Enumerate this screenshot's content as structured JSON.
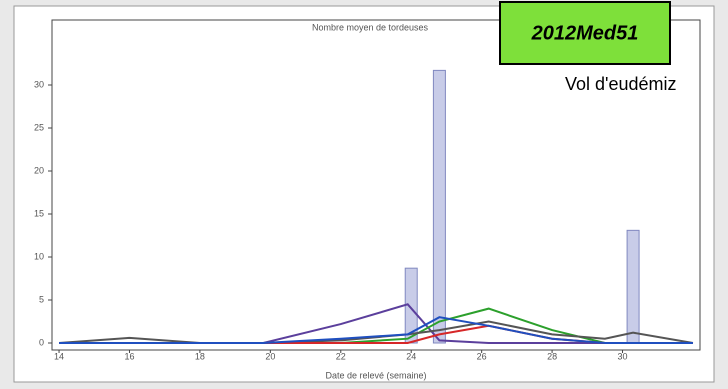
{
  "chart_data": {
    "type": "line",
    "title": "Nombre moyen de tordeuses",
    "x_label": "Date de relevé (semaine)",
    "annotations": [
      "2012Med51",
      "Vol d'eudémiz"
    ],
    "x": [
      14,
      16,
      18,
      19.8,
      22,
      23.9,
      24.8,
      26.2,
      28,
      29.5,
      30.3,
      32
    ],
    "series": [
      {
        "color": "#5b3f9c",
        "values": [
          0,
          0,
          0,
          0,
          2.2,
          4.5,
          0.3,
          0,
          0,
          0,
          0,
          0
        ]
      },
      {
        "color": "#2ca02c",
        "values": [
          0,
          0,
          0,
          0,
          0,
          0.5,
          2.5,
          4,
          1.5,
          0,
          0,
          0
        ]
      },
      {
        "color": "#555555",
        "values": [
          0,
          0.6,
          0,
          0,
          0.3,
          1,
          1.5,
          2.5,
          1,
          0.5,
          1.2,
          0
        ]
      },
      {
        "color": "#d62728",
        "values": [
          0,
          0,
          0,
          0,
          0,
          0,
          1,
          2,
          0.5,
          0,
          0,
          0
        ]
      },
      {
        "color": "#1f4fbf",
        "values": [
          0,
          0,
          0,
          0,
          0.5,
          1,
          3,
          2,
          0.5,
          0,
          0,
          0
        ]
      }
    ],
    "bars": {
      "color": "#c8cce8",
      "x": [
        24,
        24.8,
        30.3
      ],
      "values": [
        8.7,
        31.7,
        13.1
      ]
    },
    "xlim": [
      13.8,
      32.2
    ],
    "xticks": [
      14,
      16,
      18,
      20,
      22,
      24,
      26,
      28,
      30
    ],
    "ylim": [
      0,
      35
    ],
    "yticks": [
      0,
      5,
      10,
      15,
      20,
      25,
      30
    ]
  }
}
